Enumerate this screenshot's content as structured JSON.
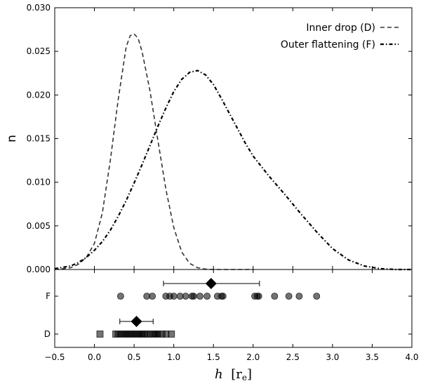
{
  "chart_data": {
    "type": "line",
    "xlabel_italic": "h",
    "xlabel_unit": "[r",
    "xlabel_unit_sub": "e",
    "xlabel_unit_close": "]",
    "ylabel": "n",
    "xlim": [
      -0.5,
      4.0
    ],
    "ylim": [
      0.0,
      0.03
    ],
    "x_ticks": [
      "−0.5",
      "0.0",
      "0.5",
      "1.0",
      "1.5",
      "2.0",
      "2.5",
      "3.0",
      "3.5",
      "4.0"
    ],
    "y_ticks": [
      "0.000",
      "0.005",
      "0.010",
      "0.015",
      "0.020",
      "0.025",
      "0.030"
    ],
    "legend_position": "top-right",
    "series": [
      {
        "name": "Inner drop (D)",
        "linestyle": "dashed",
        "color": "#333333",
        "x": [
          -0.5,
          -0.4,
          -0.3,
          -0.2,
          -0.1,
          0.0,
          0.1,
          0.2,
          0.3,
          0.4,
          0.45,
          0.5,
          0.55,
          0.6,
          0.7,
          0.8,
          0.9,
          1.0,
          1.1,
          1.2,
          1.3,
          1.4,
          1.5,
          1.6,
          1.7,
          1.8,
          2.0
        ],
        "y": [
          0.0,
          0.0001,
          0.0002,
          0.0006,
          0.0014,
          0.003,
          0.0065,
          0.0125,
          0.0195,
          0.0255,
          0.0268,
          0.027,
          0.0265,
          0.025,
          0.0205,
          0.0148,
          0.0092,
          0.0048,
          0.002,
          0.0007,
          0.0002,
          5e-05,
          0.0,
          0.0,
          0.0,
          0.0,
          0.0
        ]
      },
      {
        "name": "Outer flattening (F)",
        "linestyle": "dashdot",
        "color": "#000000",
        "x": [
          -0.5,
          -0.3,
          -0.2,
          -0.1,
          0.0,
          0.1,
          0.2,
          0.3,
          0.4,
          0.5,
          0.6,
          0.7,
          0.8,
          0.9,
          1.0,
          1.1,
          1.2,
          1.3,
          1.4,
          1.5,
          1.6,
          1.7,
          1.8,
          1.9,
          2.0,
          2.2,
          2.4,
          2.6,
          2.8,
          3.0,
          3.2,
          3.4,
          3.6,
          3.8,
          4.0
        ],
        "y": [
          0.0001,
          0.0004,
          0.0008,
          0.0014,
          0.0022,
          0.0032,
          0.0045,
          0.0061,
          0.0079,
          0.0099,
          0.012,
          0.0142,
          0.0164,
          0.0185,
          0.0204,
          0.0218,
          0.0226,
          0.0228,
          0.0223,
          0.0212,
          0.0196,
          0.0179,
          0.0162,
          0.0145,
          0.013,
          0.0107,
          0.0086,
          0.0064,
          0.0043,
          0.0024,
          0.0011,
          0.0004,
          0.0001,
          0.0,
          0.0
        ]
      }
    ],
    "strip": {
      "categories": [
        "F",
        "D"
      ],
      "F": {
        "points": [
          0.33,
          0.66,
          0.73,
          0.9,
          0.95,
          1.0,
          1.08,
          1.15,
          1.23,
          1.25,
          1.33,
          1.42,
          1.55,
          1.6,
          1.62,
          2.02,
          2.05,
          2.07,
          2.27,
          2.45,
          2.58,
          2.8
        ],
        "marker": "circle",
        "mean": 1.47,
        "err_low": 0.87,
        "err_high": 2.08
      },
      "D": {
        "points": [
          0.07,
          0.27,
          0.3,
          0.33,
          0.36,
          0.38,
          0.4,
          0.42,
          0.44,
          0.46,
          0.48,
          0.5,
          0.52,
          0.54,
          0.56,
          0.58,
          0.6,
          0.63,
          0.66,
          0.7,
          0.74,
          0.76,
          0.78,
          0.8,
          0.85,
          0.9,
          0.97
        ],
        "marker": "square",
        "mean": 0.53,
        "err_low": 0.32,
        "err_high": 0.74
      }
    }
  }
}
